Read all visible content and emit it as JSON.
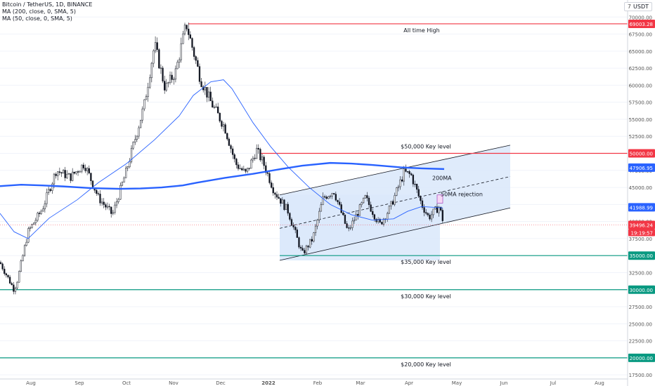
{
  "chart_data": {
    "type": "candlestick",
    "title": "Bitcoin / TetherUS, 1D, BINANCE",
    "indicators": [
      "MA (200, close, 0, SMA, 5)",
      "MA (50, close, 0, SMA, 5)"
    ],
    "currency": "USDT",
    "currency_prefix": "7",
    "y_ticks": [
      17500,
      20000,
      22500,
      25000,
      27500,
      30000,
      32500,
      35000,
      37500,
      40000,
      42500,
      45000,
      47500,
      50000,
      52500,
      55000,
      57500,
      60000,
      62500,
      65000,
      67500,
      70000
    ],
    "y_tick_labels": [
      "17500.00",
      "20000.00",
      "22500.00",
      "25000.00",
      "27500.00",
      "30000.00",
      "32500.00",
      "35000.00",
      "37500.00",
      "40000.00",
      "42500.00",
      "45000.00",
      "47500.00",
      "50000.00",
      "52500.00",
      "55000.00",
      "57500.00",
      "60000.00",
      "62500.00",
      "65000.00",
      "67500.00",
      "70000.00"
    ],
    "x_ticks": [
      "Aug",
      "Sep",
      "Oct",
      "Nov",
      "Dec",
      "2022",
      "Feb",
      "Mar",
      "Apr",
      "May",
      "Jun",
      "Jul",
      "Aug"
    ],
    "y_range": [
      16900,
      72500
    ],
    "price_tags": [
      {
        "label": "69003.28",
        "value": 69003.28,
        "color": "#f23645"
      },
      {
        "label": "50000.00",
        "value": 50000,
        "color": "#f23645"
      },
      {
        "label": "47906.95",
        "value": 47906.95,
        "color": "#2962ff"
      },
      {
        "label": "41988.99",
        "value": 41988.99,
        "color": "#2962ff"
      },
      {
        "label": "39496.24",
        "value": 39496.24,
        "color": "#f23645"
      },
      {
        "label": "35000.00",
        "value": 35000,
        "color": "#089981"
      },
      {
        "label": "30000.00",
        "value": 30000,
        "color": "#089981"
      },
      {
        "label": "20000.00",
        "value": 20000,
        "color": "#089981"
      }
    ],
    "countdown": "19:19:57",
    "horizontal_levels": [
      {
        "value": 69003.28,
        "label": "All time High",
        "color": "#f23645"
      },
      {
        "value": 50000,
        "label": "$50,000 Key level",
        "color": "#f23645"
      },
      {
        "value": 35000,
        "label": "$35,000 Key level",
        "color": "#089981"
      },
      {
        "value": 30000,
        "label": "$30,000 Key level",
        "color": "#089981"
      },
      {
        "value": 20000,
        "label": "$20,000 Key level",
        "color": "#089981"
      }
    ],
    "annotations": [
      "200MA",
      "50MA rejection"
    ],
    "colors": {
      "up": "#26a69a",
      "down": "#ef5350",
      "ma200": "#2962ff",
      "ma50": "#2962ff",
      "channel_fill": "#dbe9fb"
    },
    "ma200": [
      [
        0,
        45200
      ],
      [
        30,
        45400
      ],
      [
        60,
        45300
      ],
      [
        90,
        45150
      ],
      [
        130,
        44900
      ],
      [
        170,
        44800
      ],
      [
        200,
        44850
      ],
      [
        230,
        45000
      ],
      [
        260,
        45300
      ],
      [
        280,
        45700
      ],
      [
        320,
        46400
      ],
      [
        360,
        47000
      ],
      [
        400,
        47700
      ],
      [
        430,
        48200
      ],
      [
        470,
        48600
      ],
      [
        500,
        48500
      ],
      [
        530,
        48300
      ],
      [
        570,
        47950
      ],
      [
        600,
        47800
      ],
      [
        632,
        47700
      ]
    ],
    "ma50": [
      [
        0,
        41200
      ],
      [
        20,
        38500
      ],
      [
        40,
        37500
      ],
      [
        70,
        40500
      ],
      [
        110,
        43200
      ],
      [
        140,
        45700
      ],
      [
        180,
        48500
      ],
      [
        220,
        52000
      ],
      [
        255,
        55500
      ],
      [
        275,
        58500
      ],
      [
        300,
        60500
      ],
      [
        318,
        60800
      ],
      [
        330,
        59500
      ],
      [
        360,
        54500
      ],
      [
        385,
        51000
      ],
      [
        410,
        48000
      ],
      [
        440,
        45000
      ],
      [
        470,
        42500
      ],
      [
        500,
        41000
      ],
      [
        530,
        40200
      ],
      [
        560,
        40400
      ],
      [
        580,
        41500
      ],
      [
        600,
        42200
      ],
      [
        630,
        42000
      ]
    ],
    "channel": {
      "lower": [
        [
          398,
          34300
        ],
        [
          726,
          42000
        ]
      ],
      "upper": [
        [
          398,
          43900
        ],
        [
          726,
          51200
        ]
      ],
      "mid": [
        [
          398,
          39000
        ],
        [
          726,
          46600
        ]
      ]
    },
    "price_path": [
      [
        0,
        34000
      ],
      [
        20,
        30000
      ],
      [
        25,
        31500
      ],
      [
        40,
        38500
      ],
      [
        60,
        41800
      ],
      [
        80,
        47500
      ],
      [
        100,
        46500
      ],
      [
        120,
        48500
      ],
      [
        140,
        43500
      ],
      [
        160,
        41000
      ],
      [
        180,
        47500
      ],
      [
        205,
        57000
      ],
      [
        220,
        66000
      ],
      [
        235,
        59500
      ],
      [
        250,
        62000
      ],
      [
        265,
        69000
      ],
      [
        285,
        61000
      ],
      [
        300,
        57500
      ],
      [
        320,
        53800
      ],
      [
        335,
        48500
      ],
      [
        350,
        47000
      ],
      [
        365,
        50500
      ],
      [
        375,
        48500
      ],
      [
        390,
        44500
      ],
      [
        410,
        41500
      ],
      [
        430,
        35200
      ],
      [
        445,
        37500
      ],
      [
        460,
        43500
      ],
      [
        475,
        44500
      ],
      [
        495,
        38500
      ],
      [
        520,
        43500
      ],
      [
        540,
        39500
      ],
      [
        555,
        42000
      ],
      [
        575,
        47200
      ],
      [
        585,
        46800
      ],
      [
        600,
        42500
      ],
      [
        610,
        40600
      ],
      [
        625,
        42200
      ],
      [
        632,
        39496
      ]
    ]
  }
}
